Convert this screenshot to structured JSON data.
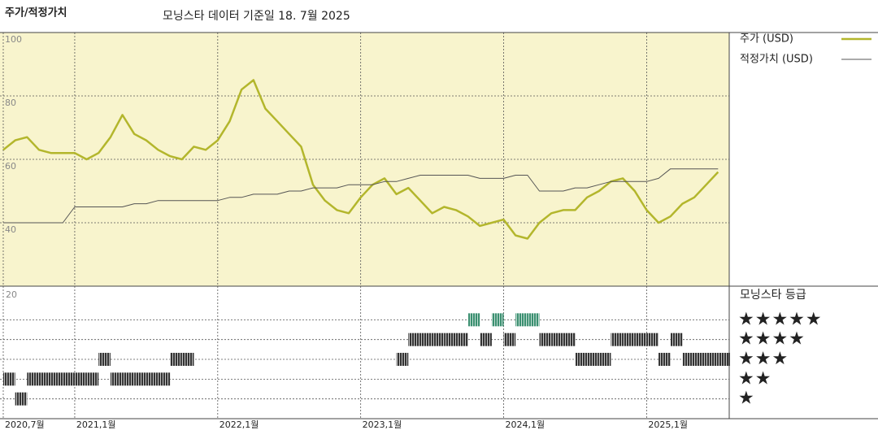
{
  "chart_data": [
    {
      "type": "line",
      "title": "주가/적정가치",
      "subtitle": "모닝스타 데이터 기준일 18. 7월 2025",
      "x": [
        "2020-07",
        "2020-08",
        "2020-09",
        "2020-10",
        "2020-11",
        "2020-12",
        "2021-01",
        "2021-02",
        "2021-03",
        "2021-04",
        "2021-05",
        "2021-06",
        "2021-07",
        "2021-08",
        "2021-09",
        "2021-10",
        "2021-11",
        "2021-12",
        "2022-01",
        "2022-02",
        "2022-03",
        "2022-04",
        "2022-05",
        "2022-06",
        "2022-07",
        "2022-08",
        "2022-09",
        "2022-10",
        "2022-11",
        "2022-12",
        "2023-01",
        "2023-02",
        "2023-03",
        "2023-04",
        "2023-05",
        "2023-06",
        "2023-07",
        "2023-08",
        "2023-09",
        "2023-10",
        "2023-11",
        "2023-12",
        "2024-01",
        "2024-02",
        "2024-03",
        "2024-04",
        "2024-05",
        "2024-06",
        "2024-07",
        "2024-08",
        "2024-09",
        "2024-10",
        "2024-11",
        "2024-12",
        "2025-01",
        "2025-02",
        "2025-03",
        "2025-04",
        "2025-05",
        "2025-06",
        "2025-07"
      ],
      "series": [
        {
          "name": "주가 (USD)",
          "color": "#b3b62c",
          "values": [
            63,
            66,
            67,
            63,
            62,
            62,
            62,
            60,
            62,
            67,
            74,
            68,
            66,
            63,
            61,
            60,
            64,
            63,
            66,
            72,
            82,
            85,
            76,
            72,
            68,
            64,
            52,
            47,
            44,
            43,
            48,
            52,
            54,
            49,
            51,
            47,
            43,
            45,
            44,
            42,
            39,
            40,
            41,
            36,
            35,
            40,
            43,
            44,
            44,
            48,
            50,
            53,
            54,
            50,
            44,
            40,
            42,
            46,
            48,
            52,
            56
          ]
        },
        {
          "name": "적정가치 (USD)",
          "color": "#555555",
          "values": [
            40,
            40,
            40,
            40,
            40,
            40,
            45,
            45,
            45,
            45,
            45,
            46,
            46,
            47,
            47,
            47,
            47,
            47,
            47,
            48,
            48,
            49,
            49,
            49,
            50,
            50,
            51,
            51,
            51,
            52,
            52,
            52,
            53,
            53,
            54,
            55,
            55,
            55,
            55,
            55,
            54,
            54,
            54,
            55,
            55,
            50,
            50,
            50,
            51,
            51,
            52,
            53,
            53,
            53,
            53,
            54,
            57,
            57,
            57,
            57,
            57
          ]
        }
      ],
      "xlim": [
        "2020-07",
        "2025-08"
      ],
      "xticks": [
        {
          "value": "2020-07",
          "label": "2020,7월"
        },
        {
          "value": "2021-01",
          "label": "2021,1월"
        },
        {
          "value": "2022-01",
          "label": "2022,1월"
        },
        {
          "value": "2023-01",
          "label": "2023,1월"
        },
        {
          "value": "2024-01",
          "label": "2024,1월"
        },
        {
          "value": "2025-01",
          "label": "2025,1월"
        }
      ],
      "ylim": [
        20,
        100
      ],
      "yticks": [
        40,
        60,
        80,
        100
      ],
      "grid": true,
      "background": "#f8f4cd"
    },
    {
      "type": "rating",
      "title": "모닝스타 등급",
      "axis_label": "20",
      "x": [
        "2020-07",
        "2020-08",
        "2020-09",
        "2020-10",
        "2020-11",
        "2020-12",
        "2021-01",
        "2021-02",
        "2021-03",
        "2021-04",
        "2021-05",
        "2021-06",
        "2021-07",
        "2021-08",
        "2021-09",
        "2021-10",
        "2021-11",
        "2021-12",
        "2022-01",
        "2022-02",
        "2022-03",
        "2022-04",
        "2022-05",
        "2022-06",
        "2022-07",
        "2022-08",
        "2022-09",
        "2022-10",
        "2022-11",
        "2022-12",
        "2023-01",
        "2023-02",
        "2023-03",
        "2023-04",
        "2023-05",
        "2023-06",
        "2023-07",
        "2023-08",
        "2023-09",
        "2023-10",
        "2023-11",
        "2023-12",
        "2024-01",
        "2024-02",
        "2024-03",
        "2024-04",
        "2024-05",
        "2024-06",
        "2024-07",
        "2024-08",
        "2024-09",
        "2024-10",
        "2024-11",
        "2024-12",
        "2025-01",
        "2025-02",
        "2025-03",
        "2025-04",
        "2025-05",
        "2025-06",
        "2025-07"
      ],
      "values": [
        2,
        1,
        2,
        2,
        2,
        2,
        2,
        2,
        3,
        2,
        2,
        2,
        2,
        2,
        3,
        3,
        null,
        null,
        null,
        null,
        null,
        null,
        null,
        null,
        null,
        null,
        null,
        null,
        null,
        null,
        null,
        null,
        null,
        3,
        4,
        4,
        4,
        4,
        4,
        5,
        4,
        5,
        4,
        5,
        5,
        4,
        4,
        4,
        3,
        3,
        3,
        4,
        4,
        4,
        4,
        3,
        4,
        3,
        3,
        3,
        3
      ],
      "color": "#333333",
      "highlight_color": "#3a8f70",
      "ylim": [
        0,
        6.7
      ],
      "yticks": [
        {
          "value": 5,
          "label": "★★★★★"
        },
        {
          "value": 4,
          "label": "★★★★"
        },
        {
          "value": 3,
          "label": "★★★"
        },
        {
          "value": 2,
          "label": "★★"
        },
        {
          "value": 1,
          "label": "★"
        }
      ]
    }
  ]
}
